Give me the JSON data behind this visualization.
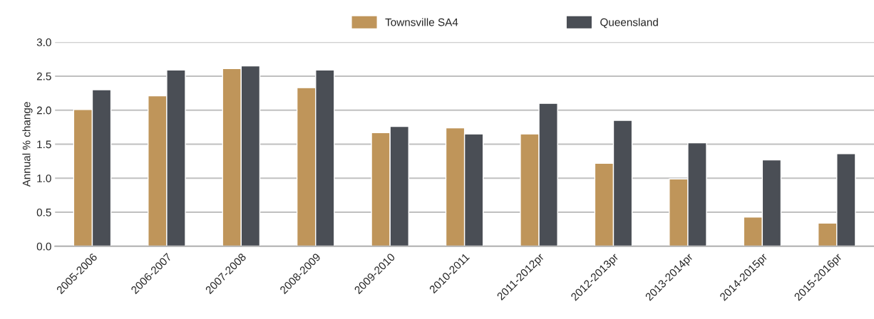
{
  "chart_data": {
    "type": "bar",
    "ylabel": "Annual % change",
    "categories": [
      "2005-2006",
      "2006-2007",
      "2007-2008",
      "2008-2009",
      "2009-2010",
      "2010-2011",
      "2011-2012pr",
      "2012-2013pr",
      "2013-2014pr",
      "2014-2015pr",
      "2015-2016pr"
    ],
    "series": [
      {
        "name": "Townsville SA4",
        "color": "#bf955a",
        "values": [
          2.01,
          2.21,
          2.61,
          2.33,
          1.67,
          1.74,
          1.65,
          1.22,
          0.99,
          0.43,
          0.34
        ]
      },
      {
        "name": "Queensland",
        "color": "#4a4e55",
        "values": [
          2.3,
          2.59,
          2.65,
          2.59,
          1.76,
          1.65,
          2.1,
          1.85,
          1.52,
          1.27,
          1.36
        ]
      }
    ],
    "ylim": [
      0,
      3.0
    ],
    "yticks": [
      {
        "value": 0,
        "label": "0.0"
      },
      {
        "value": 0.5,
        "label": "0.5"
      },
      {
        "value": 1.0,
        "label": "1.0"
      },
      {
        "value": 1.5,
        "label": "1.5"
      },
      {
        "value": 2.0,
        "label": "2.0"
      },
      {
        "value": 2.5,
        "label": "2.5"
      },
      {
        "value": 3.0,
        "label": "3.0"
      }
    ],
    "grid": "y",
    "legend": "top"
  }
}
